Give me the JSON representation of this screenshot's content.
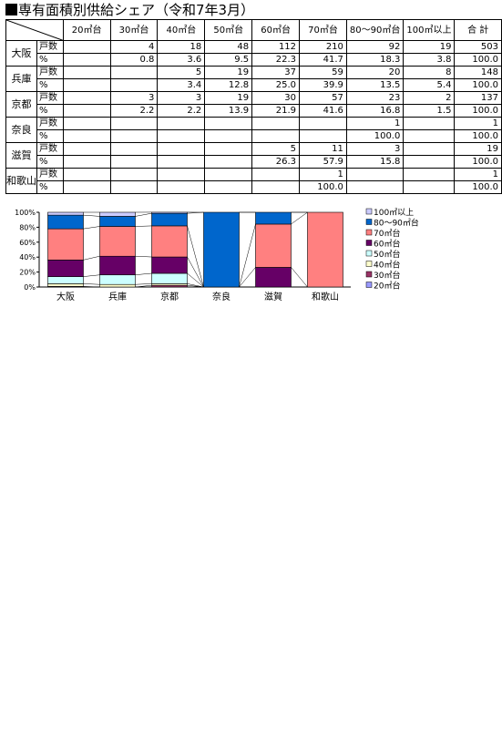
{
  "title": "専有面積別供給シェア（令和7年3月）",
  "table": {
    "columns": [
      "20㎡台",
      "30㎡台",
      "40㎡台",
      "50㎡台",
      "60㎡台",
      "70㎡台",
      "80～90㎡台",
      "100㎡以上",
      "合 計"
    ],
    "row_label_count": "戸数",
    "row_label_pct": "%",
    "prefectures": [
      {
        "name": "大阪",
        "count": [
          "",
          "4",
          "18",
          "48",
          "112",
          "210",
          "92",
          "19",
          "503"
        ],
        "pct": [
          "",
          "0.8",
          "3.6",
          "9.5",
          "22.3",
          "41.7",
          "18.3",
          "3.8",
          "100.0"
        ]
      },
      {
        "name": "兵庫",
        "count": [
          "",
          "",
          "5",
          "19",
          "37",
          "59",
          "20",
          "8",
          "148"
        ],
        "pct": [
          "",
          "",
          "3.4",
          "12.8",
          "25.0",
          "39.9",
          "13.5",
          "5.4",
          "100.0"
        ]
      },
      {
        "name": "京都",
        "count": [
          "",
          "3",
          "3",
          "19",
          "30",
          "57",
          "23",
          "2",
          "137"
        ],
        "pct": [
          "",
          "2.2",
          "2.2",
          "13.9",
          "21.9",
          "41.6",
          "16.8",
          "1.5",
          "100.0"
        ]
      },
      {
        "name": "奈良",
        "count": [
          "",
          "",
          "",
          "",
          "",
          "",
          "1",
          "",
          "1"
        ],
        "pct": [
          "",
          "",
          "",
          "",
          "",
          "",
          "100.0",
          "",
          "100.0"
        ]
      },
      {
        "name": "滋賀",
        "count": [
          "",
          "",
          "",
          "",
          "5",
          "11",
          "3",
          "",
          "19"
        ],
        "pct": [
          "",
          "",
          "",
          "",
          "26.3",
          "57.9",
          "15.8",
          "",
          "100.0"
        ]
      },
      {
        "name": "和歌山",
        "count": [
          "",
          "",
          "",
          "",
          "",
          "1",
          "",
          "",
          "1"
        ],
        "pct": [
          "",
          "",
          "",
          "",
          "",
          "100.0",
          "",
          "",
          "100.0"
        ]
      }
    ]
  },
  "chart_data": {
    "type": "bar",
    "stacked": true,
    "categories": [
      "大阪",
      "兵庫",
      "京都",
      "奈良",
      "滋賀",
      "和歌山"
    ],
    "series": [
      {
        "name": "20㎡台",
        "color": "#9999ff",
        "values": [
          0,
          0,
          0,
          0,
          0,
          0
        ]
      },
      {
        "name": "30㎡台",
        "color": "#993366",
        "values": [
          0.8,
          0,
          2.2,
          0,
          0,
          0
        ]
      },
      {
        "name": "40㎡台",
        "color": "#ffffcc",
        "values": [
          3.6,
          3.4,
          2.2,
          0,
          0,
          0
        ]
      },
      {
        "name": "50㎡台",
        "color": "#ccffff",
        "values": [
          9.5,
          12.8,
          13.9,
          0,
          0,
          0
        ]
      },
      {
        "name": "60㎡台",
        "color": "#660066",
        "values": [
          22.3,
          25.0,
          21.9,
          0,
          26.3,
          0
        ]
      },
      {
        "name": "70㎡台",
        "color": "#ff8080",
        "values": [
          41.7,
          39.9,
          41.6,
          0,
          57.9,
          100.0
        ]
      },
      {
        "name": "80～90㎡台",
        "color": "#0066cc",
        "values": [
          18.3,
          13.5,
          16.8,
          100.0,
          15.8,
          0
        ]
      },
      {
        "name": "100㎡以上",
        "color": "#ccccff",
        "values": [
          3.8,
          5.4,
          1.5,
          0,
          0,
          0
        ]
      }
    ],
    "yticks": [
      "0%",
      "20%",
      "40%",
      "60%",
      "80%",
      "100%"
    ],
    "ylim": [
      0,
      100
    ],
    "series_lines": true,
    "legend_position": "right"
  }
}
